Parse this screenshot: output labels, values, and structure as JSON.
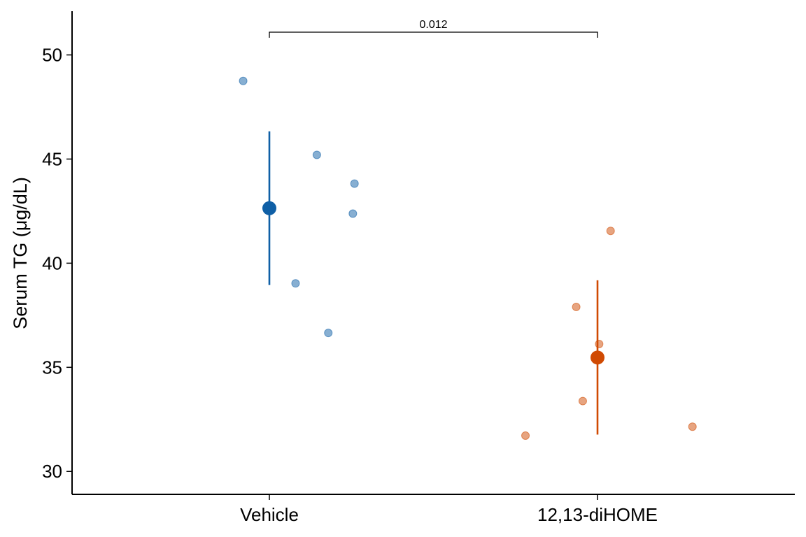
{
  "chart_data": {
    "type": "scatter",
    "title": "",
    "xlabel": "",
    "ylabel": "Serum TG (μg/dL)",
    "ylim": [
      28.9,
      52.1
    ],
    "yticks": [
      30,
      35,
      40,
      45,
      50
    ],
    "categories": [
      "Vehicle",
      "12,13-diHOME"
    ],
    "grid": false,
    "legend": "none",
    "series": [
      {
        "category": "Vehicle",
        "color": "#0F5FA6",
        "points": [
          {
            "x": -0.16,
            "y": 48.75
          },
          {
            "x": 0.29,
            "y": 45.2
          },
          {
            "x": 0.52,
            "y": 43.82
          },
          {
            "x": 0.51,
            "y": 42.38
          },
          {
            "x": 0.16,
            "y": 39.03
          },
          {
            "x": 0.36,
            "y": 36.65
          }
        ],
        "mean": 42.64,
        "error_low": 38.95,
        "error_high": 46.33
      },
      {
        "category": "12,13-diHOME",
        "color": "#D04A02",
        "points": [
          {
            "x": 0.08,
            "y": 41.55
          },
          {
            "x": -0.13,
            "y": 37.9
          },
          {
            "x": 0.01,
            "y": 36.12
          },
          {
            "x": -0.09,
            "y": 33.38
          },
          {
            "x": 0.58,
            "y": 32.15
          },
          {
            "x": -0.44,
            "y": 31.72
          }
        ],
        "mean": 35.47,
        "error_low": 31.77,
        "error_high": 39.18
      }
    ],
    "annotations": [
      {
        "type": "significance-bracket",
        "from": "Vehicle",
        "to": "12,13-diHOME",
        "label": "0.012"
      }
    ]
  }
}
